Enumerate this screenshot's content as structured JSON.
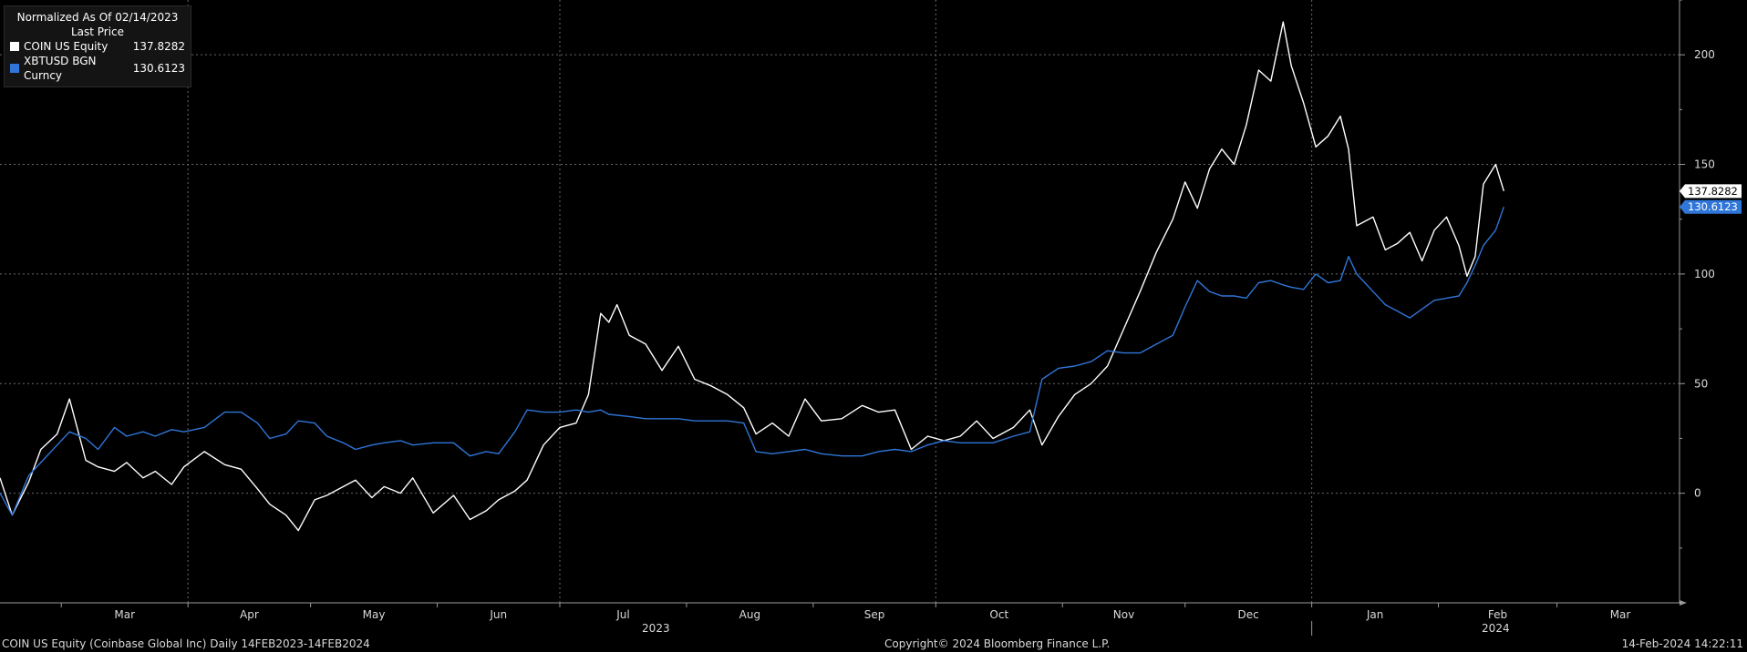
{
  "chart_data": {
    "type": "line",
    "title": "Normalized As Of 02/14/2023",
    "subtitle": "Last Price",
    "x_axis": {
      "month_labels": [
        "Mar",
        "Apr",
        "May",
        "Jun",
        "Jul",
        "Aug",
        "Sep",
        "Oct",
        "Nov",
        "Dec",
        "Jan",
        "Feb",
        "Mar"
      ],
      "year_labels": [
        "2023",
        "2024"
      ],
      "range": [
        "2023-02-14",
        "2024-03-31"
      ]
    },
    "y_axis": {
      "ticks": [
        0,
        50,
        100,
        150,
        200
      ],
      "range": [
        -50,
        225
      ],
      "position": "right"
    },
    "grid": true,
    "legend_position": "top-left",
    "series": [
      {
        "name": "COIN US Equity",
        "last_value": "137.8282",
        "color": "#ffffff",
        "points": [
          [
            "2023-02-14",
            7
          ],
          [
            "2023-02-17",
            -10
          ],
          [
            "2023-02-21",
            5
          ],
          [
            "2023-02-24",
            20
          ],
          [
            "2023-02-28",
            27
          ],
          [
            "2023-03-03",
            43
          ],
          [
            "2023-03-07",
            15
          ],
          [
            "2023-03-10",
            12
          ],
          [
            "2023-03-14",
            10
          ],
          [
            "2023-03-17",
            14
          ],
          [
            "2023-03-21",
            7
          ],
          [
            "2023-03-24",
            10
          ],
          [
            "2023-03-28",
            4
          ],
          [
            "2023-03-31",
            12
          ],
          [
            "2023-04-05",
            19
          ],
          [
            "2023-04-10",
            13
          ],
          [
            "2023-04-14",
            11
          ],
          [
            "2023-04-18",
            2
          ],
          [
            "2023-04-21",
            -5
          ],
          [
            "2023-04-25",
            -10
          ],
          [
            "2023-04-28",
            -17
          ],
          [
            "2023-05-02",
            -3
          ],
          [
            "2023-05-05",
            -1
          ],
          [
            "2023-05-09",
            3
          ],
          [
            "2023-05-12",
            6
          ],
          [
            "2023-05-16",
            -2
          ],
          [
            "2023-05-19",
            3
          ],
          [
            "2023-05-23",
            0
          ],
          [
            "2023-05-26",
            7
          ],
          [
            "2023-05-31",
            -9
          ],
          [
            "2023-06-05",
            -1
          ],
          [
            "2023-06-09",
            -12
          ],
          [
            "2023-06-13",
            -8
          ],
          [
            "2023-06-16",
            -3
          ],
          [
            "2023-06-20",
            1
          ],
          [
            "2023-06-23",
            6
          ],
          [
            "2023-06-27",
            22
          ],
          [
            "2023-07-01",
            30
          ],
          [
            "2023-07-05",
            32
          ],
          [
            "2023-07-08",
            45
          ],
          [
            "2023-07-11",
            82
          ],
          [
            "2023-07-13",
            78
          ],
          [
            "2023-07-15",
            86
          ],
          [
            "2023-07-18",
            72
          ],
          [
            "2023-07-22",
            68
          ],
          [
            "2023-07-26",
            56
          ],
          [
            "2023-07-30",
            67
          ],
          [
            "2023-08-03",
            52
          ],
          [
            "2023-08-07",
            49
          ],
          [
            "2023-08-11",
            45
          ],
          [
            "2023-08-15",
            39
          ],
          [
            "2023-08-18",
            27
          ],
          [
            "2023-08-22",
            32
          ],
          [
            "2023-08-26",
            26
          ],
          [
            "2023-08-30",
            43
          ],
          [
            "2023-09-03",
            33
          ],
          [
            "2023-09-08",
            34
          ],
          [
            "2023-09-13",
            40
          ],
          [
            "2023-09-17",
            37
          ],
          [
            "2023-09-21",
            38
          ],
          [
            "2023-09-25",
            20
          ],
          [
            "2023-09-29",
            26
          ],
          [
            "2023-10-03",
            24
          ],
          [
            "2023-10-07",
            26
          ],
          [
            "2023-10-11",
            33
          ],
          [
            "2023-10-15",
            25
          ],
          [
            "2023-10-20",
            30
          ],
          [
            "2023-10-24",
            38
          ],
          [
            "2023-10-27",
            22
          ],
          [
            "2023-10-31",
            35
          ],
          [
            "2023-11-04",
            45
          ],
          [
            "2023-11-08",
            50
          ],
          [
            "2023-11-12",
            58
          ],
          [
            "2023-11-16",
            75
          ],
          [
            "2023-11-20",
            92
          ],
          [
            "2023-11-24",
            110
          ],
          [
            "2023-11-28",
            125
          ],
          [
            "2023-12-01",
            142
          ],
          [
            "2023-12-04",
            130
          ],
          [
            "2023-12-07",
            148
          ],
          [
            "2023-12-10",
            157
          ],
          [
            "2023-12-13",
            150
          ],
          [
            "2023-12-16",
            168
          ],
          [
            "2023-12-19",
            193
          ],
          [
            "2023-12-22",
            188
          ],
          [
            "2023-12-25",
            215
          ],
          [
            "2023-12-27",
            195
          ],
          [
            "2023-12-30",
            178
          ],
          [
            "2024-01-02",
            158
          ],
          [
            "2024-01-05",
            163
          ],
          [
            "2024-01-08",
            172
          ],
          [
            "2024-01-10",
            157
          ],
          [
            "2024-01-12",
            122
          ],
          [
            "2024-01-16",
            126
          ],
          [
            "2024-01-19",
            111
          ],
          [
            "2024-01-22",
            114
          ],
          [
            "2024-01-25",
            119
          ],
          [
            "2024-01-28",
            106
          ],
          [
            "2024-01-31",
            120
          ],
          [
            "2024-02-03",
            126
          ],
          [
            "2024-02-06",
            113
          ],
          [
            "2024-02-08",
            99
          ],
          [
            "2024-02-10",
            108
          ],
          [
            "2024-02-12",
            141
          ],
          [
            "2024-02-15",
            150
          ],
          [
            "2024-02-17",
            137.8282
          ]
        ]
      },
      {
        "name": "XBTUSD BGN Curncy",
        "last_value": "130.6123",
        "color": "#2f76d8",
        "points": [
          [
            "2023-02-14",
            0
          ],
          [
            "2023-02-17",
            -10
          ],
          [
            "2023-02-21",
            8
          ],
          [
            "2023-02-24",
            14
          ],
          [
            "2023-02-28",
            22
          ],
          [
            "2023-03-03",
            28
          ],
          [
            "2023-03-07",
            25
          ],
          [
            "2023-03-10",
            20
          ],
          [
            "2023-03-14",
            30
          ],
          [
            "2023-03-17",
            26
          ],
          [
            "2023-03-21",
            28
          ],
          [
            "2023-03-24",
            26
          ],
          [
            "2023-03-28",
            29
          ],
          [
            "2023-03-31",
            28
          ],
          [
            "2023-04-05",
            30
          ],
          [
            "2023-04-10",
            37
          ],
          [
            "2023-04-14",
            37
          ],
          [
            "2023-04-18",
            32
          ],
          [
            "2023-04-21",
            25
          ],
          [
            "2023-04-25",
            27
          ],
          [
            "2023-04-28",
            33
          ],
          [
            "2023-05-02",
            32
          ],
          [
            "2023-05-05",
            26
          ],
          [
            "2023-05-09",
            23
          ],
          [
            "2023-05-12",
            20
          ],
          [
            "2023-05-16",
            22
          ],
          [
            "2023-05-19",
            23
          ],
          [
            "2023-05-23",
            24
          ],
          [
            "2023-05-26",
            22
          ],
          [
            "2023-05-31",
            23
          ],
          [
            "2023-06-05",
            23
          ],
          [
            "2023-06-09",
            17
          ],
          [
            "2023-06-13",
            19
          ],
          [
            "2023-06-16",
            18
          ],
          [
            "2023-06-20",
            28
          ],
          [
            "2023-06-23",
            38
          ],
          [
            "2023-06-27",
            37
          ],
          [
            "2023-07-01",
            37
          ],
          [
            "2023-07-05",
            38
          ],
          [
            "2023-07-08",
            37
          ],
          [
            "2023-07-11",
            38
          ],
          [
            "2023-07-13",
            36
          ],
          [
            "2023-07-18",
            35
          ],
          [
            "2023-07-22",
            34
          ],
          [
            "2023-07-26",
            34
          ],
          [
            "2023-07-30",
            34
          ],
          [
            "2023-08-03",
            33
          ],
          [
            "2023-08-07",
            33
          ],
          [
            "2023-08-11",
            33
          ],
          [
            "2023-08-15",
            32
          ],
          [
            "2023-08-18",
            19
          ],
          [
            "2023-08-22",
            18
          ],
          [
            "2023-08-26",
            19
          ],
          [
            "2023-08-30",
            20
          ],
          [
            "2023-09-03",
            18
          ],
          [
            "2023-09-08",
            17
          ],
          [
            "2023-09-13",
            17
          ],
          [
            "2023-09-17",
            19
          ],
          [
            "2023-09-21",
            20
          ],
          [
            "2023-09-25",
            19
          ],
          [
            "2023-09-29",
            22
          ],
          [
            "2023-10-03",
            24
          ],
          [
            "2023-10-07",
            23
          ],
          [
            "2023-10-11",
            23
          ],
          [
            "2023-10-15",
            23
          ],
          [
            "2023-10-20",
            26
          ],
          [
            "2023-10-24",
            28
          ],
          [
            "2023-10-27",
            52
          ],
          [
            "2023-10-31",
            57
          ],
          [
            "2023-11-04",
            58
          ],
          [
            "2023-11-08",
            60
          ],
          [
            "2023-11-12",
            65
          ],
          [
            "2023-11-16",
            64
          ],
          [
            "2023-11-20",
            64
          ],
          [
            "2023-11-24",
            68
          ],
          [
            "2023-11-28",
            72
          ],
          [
            "2023-12-01",
            85
          ],
          [
            "2023-12-04",
            97
          ],
          [
            "2023-12-07",
            92
          ],
          [
            "2023-12-10",
            90
          ],
          [
            "2023-12-13",
            90
          ],
          [
            "2023-12-16",
            89
          ],
          [
            "2023-12-19",
            96
          ],
          [
            "2023-12-22",
            97
          ],
          [
            "2023-12-25",
            95
          ],
          [
            "2023-12-27",
            94
          ],
          [
            "2023-12-30",
            93
          ],
          [
            "2024-01-02",
            100
          ],
          [
            "2024-01-05",
            96
          ],
          [
            "2024-01-08",
            97
          ],
          [
            "2024-01-10",
            108
          ],
          [
            "2024-01-12",
            100
          ],
          [
            "2024-01-16",
            92
          ],
          [
            "2024-01-19",
            86
          ],
          [
            "2024-01-22",
            83
          ],
          [
            "2024-01-25",
            80
          ],
          [
            "2024-01-28",
            84
          ],
          [
            "2024-01-31",
            88
          ],
          [
            "2024-02-03",
            89
          ],
          [
            "2024-02-06",
            90
          ],
          [
            "2024-02-08",
            96
          ],
          [
            "2024-02-10",
            104
          ],
          [
            "2024-02-12",
            113
          ],
          [
            "2024-02-15",
            120
          ],
          [
            "2024-02-17",
            130.6123
          ]
        ]
      }
    ]
  },
  "footer": {
    "left": "COIN US Equity (Coinbase Global Inc)  Daily 14FEB2023-14FEB2024",
    "center": "Copyright© 2024 Bloomberg Finance L.P.",
    "right": "14-Feb-2024 14:22:11"
  }
}
